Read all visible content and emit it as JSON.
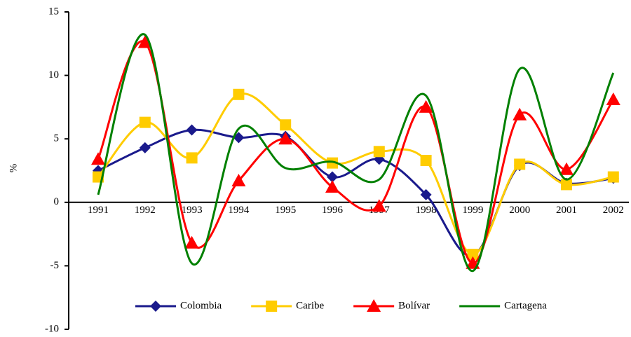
{
  "chart_data": {
    "type": "line",
    "y_label": "%",
    "categories": [
      "1991",
      "1992",
      "1993",
      "1994",
      "1995",
      "1996",
      "1997",
      "1998",
      "1999",
      "2000",
      "2001",
      "2002"
    ],
    "ylim": [
      -10,
      15
    ],
    "yticks": [
      -10,
      -5,
      0,
      5,
      10,
      15
    ],
    "grid": false,
    "smooth": true,
    "legend": "bottom",
    "series": [
      {
        "name": "Colombia",
        "color": "#1a1a8c",
        "marker": "diamond",
        "values": [
          2.5,
          4.3,
          5.7,
          5.1,
          5.2,
          2.0,
          3.4,
          0.6,
          -4.2,
          2.9,
          1.5,
          1.9
        ]
      },
      {
        "name": "Caribe",
        "color": "#ffcc00",
        "marker": "square",
        "values": [
          2.0,
          6.3,
          3.5,
          8.5,
          6.1,
          3.1,
          4.0,
          3.3,
          -4.1,
          3.0,
          1.4,
          2.0
        ]
      },
      {
        "name": "Bolívar",
        "color": "#ff0000",
        "marker": "triangle",
        "values": [
          3.4,
          12.6,
          -3.2,
          1.7,
          5.0,
          1.2,
          -0.3,
          7.5,
          -4.8,
          6.9,
          2.6,
          8.1
        ]
      },
      {
        "name": "Cartagena",
        "color": "#008000",
        "marker": "none",
        "values": [
          0.6,
          13.2,
          -4.8,
          5.8,
          2.7,
          3.2,
          1.8,
          8.4,
          -5.4,
          10.5,
          1.8,
          10.2
        ]
      }
    ]
  }
}
